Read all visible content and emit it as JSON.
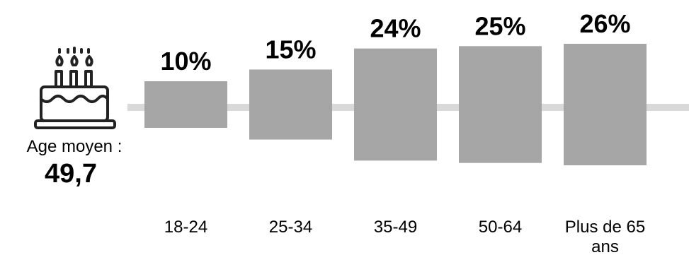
{
  "chart_data": {
    "type": "bar",
    "categories": [
      "18-24",
      "25-34",
      "35-49",
      "50-64",
      "Plus de 65 ans"
    ],
    "values": [
      10,
      15,
      24,
      25,
      26
    ],
    "value_labels": [
      "10%",
      "15%",
      "24%",
      "25%",
      "26%"
    ],
    "ylim": [
      0,
      26
    ],
    "bar_color": "#a6a6a6",
    "baseline_color": "#d9d9d9"
  },
  "average": {
    "label": "Age moyen :",
    "value": "49,7"
  },
  "icon": "birthday-cake-icon"
}
